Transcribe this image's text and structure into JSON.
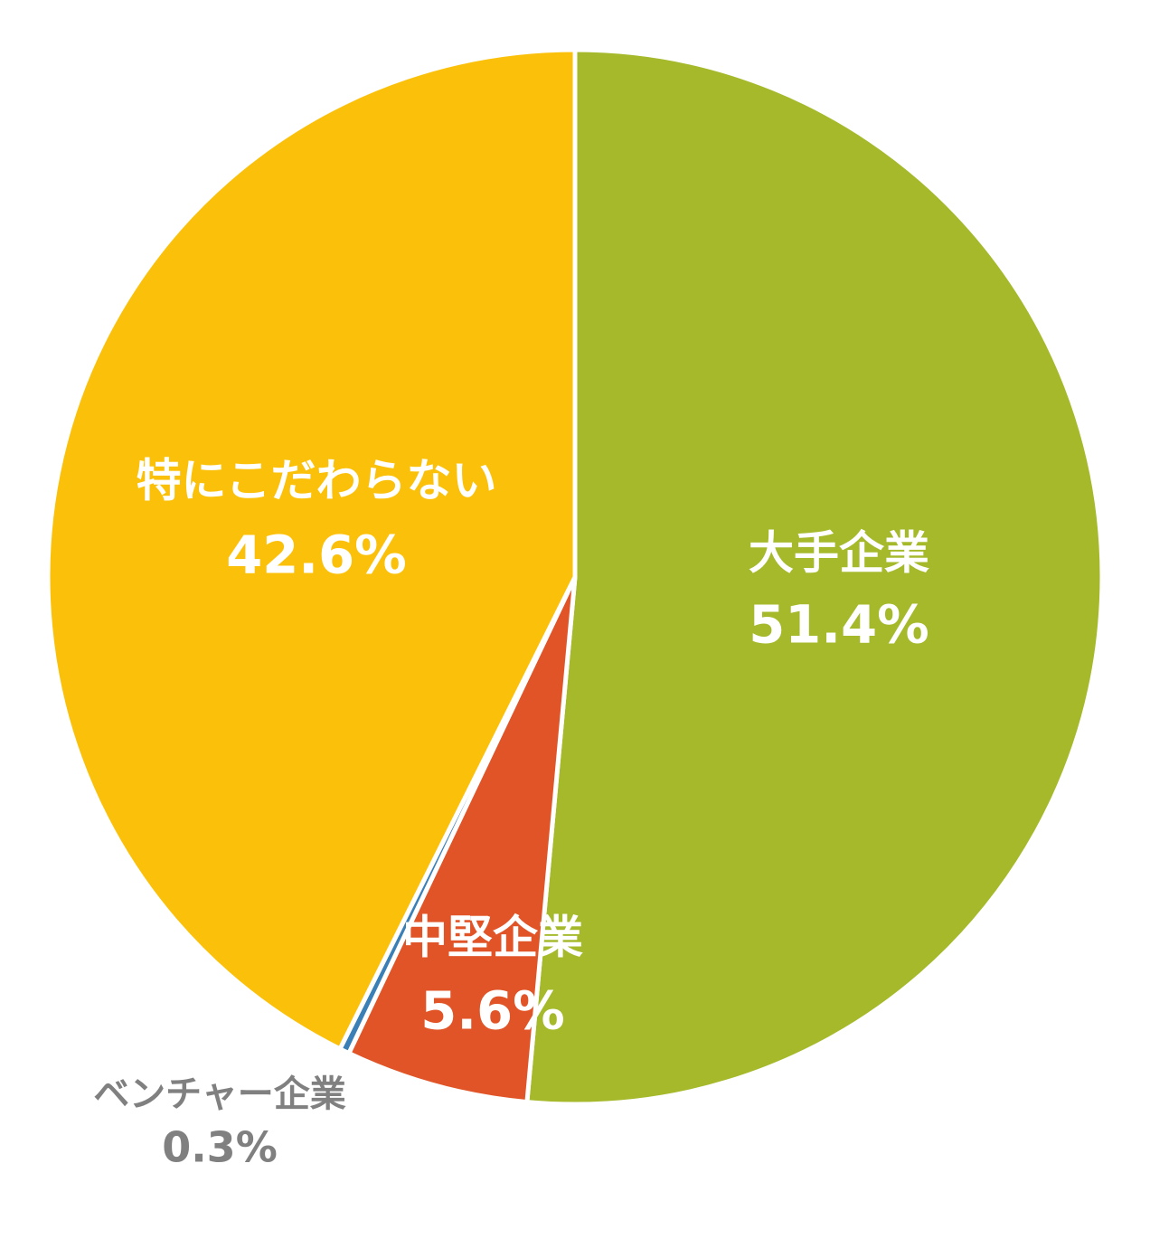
{
  "chart_data": {
    "type": "pie",
    "categories": [
      "大手企業",
      "中堅企業",
      "ベンチャー企業",
      "特にこだわらない"
    ],
    "values": [
      51.4,
      5.6,
      0.3,
      42.6
    ],
    "value_labels": [
      "51.4%",
      "5.6%",
      "0.3%",
      "42.6%"
    ],
    "colors": [
      "#a5b92a",
      "#e05427",
      "#3a7fb5",
      "#fbc10a"
    ]
  }
}
